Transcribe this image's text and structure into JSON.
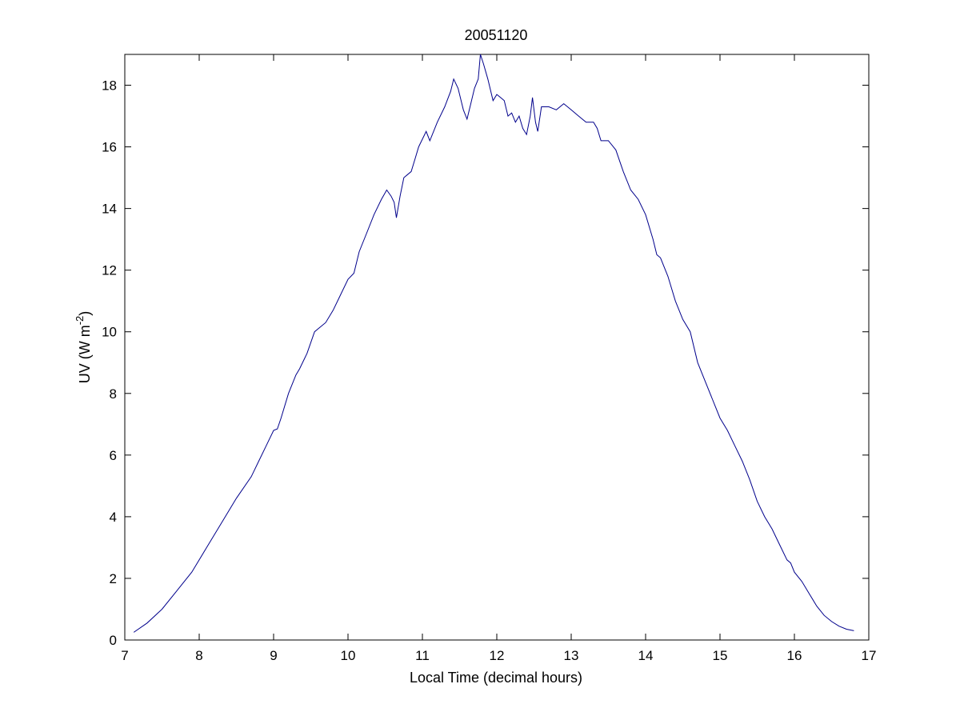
{
  "chart_data": {
    "type": "line",
    "title": "20051120",
    "xlabel": "Local Time (decimal hours)",
    "ylabel": {
      "prefix": "UV (W m",
      "superscript": "-2",
      "suffix": ")"
    },
    "xlim": [
      7,
      17
    ],
    "ylim": [
      0,
      19
    ],
    "xticks": [
      7,
      8,
      9,
      10,
      11,
      12,
      13,
      14,
      15,
      16,
      17
    ],
    "yticks": [
      0,
      2,
      4,
      6,
      8,
      10,
      12,
      14,
      16,
      18
    ],
    "grid": false,
    "series": [
      {
        "color": "#00008b",
        "x": [
          7.12,
          7.3,
          7.5,
          7.7,
          7.9,
          8.1,
          8.3,
          8.5,
          8.7,
          8.8,
          8.9,
          9.0,
          9.05,
          9.1,
          9.2,
          9.3,
          9.35,
          9.45,
          9.55,
          9.6,
          9.7,
          9.8,
          9.9,
          10.0,
          10.08,
          10.15,
          10.25,
          10.35,
          10.45,
          10.52,
          10.58,
          10.62,
          10.65,
          10.7,
          10.75,
          10.85,
          10.9,
          10.95,
          11.05,
          11.1,
          11.2,
          11.3,
          11.38,
          11.42,
          11.48,
          11.55,
          11.6,
          11.65,
          11.7,
          11.75,
          11.78,
          11.82,
          11.88,
          11.95,
          12.0,
          12.05,
          12.1,
          12.15,
          12.2,
          12.25,
          12.3,
          12.35,
          12.4,
          12.45,
          12.48,
          12.52,
          12.55,
          12.6,
          12.7,
          12.8,
          12.9,
          13.0,
          13.1,
          13.2,
          13.3,
          13.35,
          13.4,
          13.5,
          13.6,
          13.7,
          13.8,
          13.9,
          14.0,
          14.1,
          14.15,
          14.2,
          14.3,
          14.4,
          14.5,
          14.6,
          14.7,
          14.8,
          14.9,
          15.0,
          15.1,
          15.2,
          15.3,
          15.4,
          15.5,
          15.6,
          15.7,
          15.8,
          15.9,
          15.95,
          16.0,
          16.1,
          16.2,
          16.3,
          16.4,
          16.5,
          16.6,
          16.7,
          16.8
        ],
        "y": [
          0.25,
          0.55,
          1.0,
          1.6,
          2.2,
          3.0,
          3.8,
          4.6,
          5.3,
          5.8,
          6.3,
          6.8,
          6.85,
          7.2,
          8.0,
          8.6,
          8.8,
          9.3,
          10.0,
          10.1,
          10.3,
          10.7,
          11.2,
          11.7,
          11.9,
          12.6,
          13.2,
          13.8,
          14.3,
          14.6,
          14.4,
          14.2,
          13.7,
          14.4,
          15.0,
          15.2,
          15.6,
          16.0,
          16.5,
          16.2,
          16.8,
          17.3,
          17.8,
          18.2,
          17.9,
          17.2,
          16.9,
          17.4,
          17.9,
          18.2,
          19.0,
          18.7,
          18.2,
          17.5,
          17.7,
          17.6,
          17.5,
          17.0,
          17.1,
          16.8,
          17.0,
          16.6,
          16.4,
          17.0,
          17.6,
          16.8,
          16.5,
          17.3,
          17.3,
          17.2,
          17.4,
          17.2,
          17.0,
          16.8,
          16.8,
          16.6,
          16.2,
          16.2,
          15.9,
          15.2,
          14.6,
          14.3,
          13.8,
          13.0,
          12.5,
          12.4,
          11.8,
          11.0,
          10.4,
          10.0,
          9.0,
          8.4,
          7.8,
          7.2,
          6.8,
          6.3,
          5.8,
          5.2,
          4.5,
          4.0,
          3.6,
          3.1,
          2.6,
          2.5,
          2.2,
          1.9,
          1.5,
          1.1,
          0.8,
          0.6,
          0.45,
          0.35,
          0.3
        ]
      }
    ]
  }
}
